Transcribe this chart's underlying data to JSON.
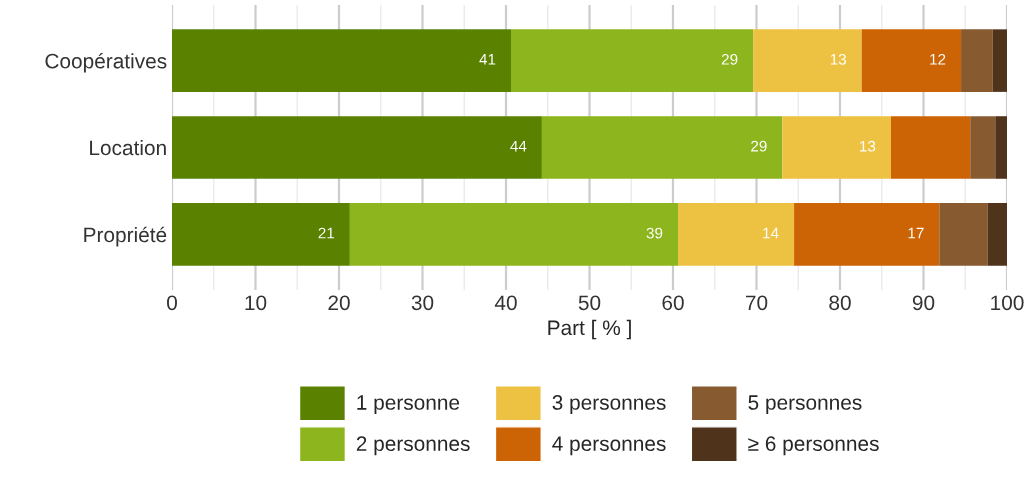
{
  "chart_data": {
    "type": "bar",
    "orientation": "horizontal",
    "stacked": true,
    "xlabel": "Part [ % ]",
    "categories": [
      "Coopératives",
      "Location",
      "Propriété"
    ],
    "series": [
      {
        "name": "1 personne",
        "color": "#5a8200",
        "values": [
          40.6,
          44.3,
          21.3
        ],
        "value_labels": [
          "41",
          "44",
          "21"
        ]
      },
      {
        "name": "2 personnes",
        "color": "#8db51d",
        "values": [
          29.0,
          28.8,
          39.3
        ],
        "value_labels": [
          "29",
          "29",
          "39"
        ]
      },
      {
        "name": "3 personnes",
        "color": "#edc243",
        "values": [
          13.0,
          13.0,
          13.9
        ],
        "value_labels": [
          "13",
          "13",
          "14"
        ]
      },
      {
        "name": "4 personnes",
        "color": "#cc6406",
        "values": [
          11.9,
          9.5,
          17.4
        ],
        "value_labels": [
          "12",
          null,
          "17"
        ]
      },
      {
        "name": "5 personnes",
        "color": "#875a30",
        "values": [
          3.8,
          3.0,
          5.8
        ]
      },
      {
        "name": "≥ 6 personnes",
        "color": "#4f341b",
        "values": [
          1.7,
          1.4,
          2.3
        ]
      }
    ],
    "xlim": [
      0,
      100
    ],
    "xticks": [
      0,
      {
        "value": 5,
        "label": null
      },
      10,
      {
        "value": 15,
        "label": null
      },
      20,
      {
        "value": 25,
        "label": null
      },
      30,
      {
        "value": 35,
        "label": null
      },
      40,
      {
        "value": 45,
        "label": null
      },
      50,
      {
        "value": 55,
        "label": null
      },
      60,
      {
        "value": 65,
        "label": null
      },
      70,
      {
        "value": 75,
        "label": null
      },
      80,
      {
        "value": 85,
        "label": null
      },
      90,
      {
        "value": 95,
        "label": null
      },
      100
    ],
    "grid": "x",
    "legend": "bottom"
  }
}
